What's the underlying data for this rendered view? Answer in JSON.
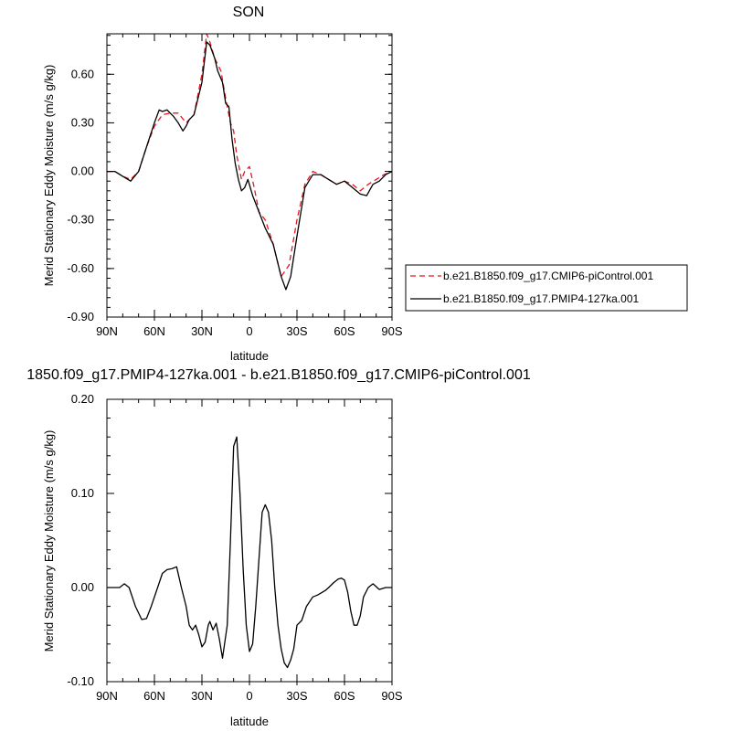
{
  "chart_data": [
    {
      "type": "line",
      "title": "SON",
      "xlabel": "latitude",
      "ylabel": "Merid Stationary Eddy Moisture (m/s g/kg)",
      "xlim": [
        90,
        -90
      ],
      "ylim": [
        -0.9,
        0.85
      ],
      "x_ticks": [
        {
          "value": 90,
          "label": "90N"
        },
        {
          "value": 60,
          "label": "60N"
        },
        {
          "value": 30,
          "label": "30N"
        },
        {
          "value": 0,
          "label": "0"
        },
        {
          "value": -30,
          "label": "30S"
        },
        {
          "value": -60,
          "label": "60S"
        },
        {
          "value": -90,
          "label": "90S"
        }
      ],
      "y_ticks": [
        {
          "value": 0.6,
          "label": "0.60"
        },
        {
          "value": 0.3,
          "label": "0.30"
        },
        {
          "value": 0.0,
          "label": "0.00"
        },
        {
          "value": -0.3,
          "label": "-0.30"
        },
        {
          "value": -0.6,
          "label": "-0.60"
        },
        {
          "value": -0.9,
          "label": "-0.90"
        }
      ],
      "legend": "right",
      "series": [
        {
          "name": "b.e21.B1850.f09_g17.CMIP6-piControl.001",
          "color": "#e8141e",
          "dash": "dashed",
          "x": [
            90,
            85,
            80,
            75,
            70,
            65,
            60,
            55,
            50,
            45,
            40,
            35,
            30,
            27,
            25,
            22,
            18,
            15,
            12,
            10,
            8,
            5,
            3,
            0,
            -3,
            -6,
            -10,
            -15,
            -20,
            -25,
            -30,
            -35,
            -40,
            -45,
            -50,
            -55,
            -60,
            -65,
            -70,
            -75,
            -80,
            -85,
            -90
          ],
          "y": [
            0.0,
            0.0,
            -0.03,
            -0.05,
            0.0,
            0.15,
            0.28,
            0.35,
            0.36,
            0.36,
            0.3,
            0.35,
            0.6,
            0.85,
            0.8,
            0.7,
            0.62,
            0.45,
            0.3,
            0.25,
            0.1,
            -0.05,
            0.0,
            0.03,
            -0.1,
            -0.25,
            -0.3,
            -0.45,
            -0.65,
            -0.58,
            -0.3,
            -0.08,
            0.0,
            -0.02,
            -0.05,
            -0.08,
            -0.06,
            -0.08,
            -0.12,
            -0.08,
            -0.05,
            -0.02,
            0.0
          ]
        },
        {
          "name": "b.e21.B1850.f09_g17.PMIP4-127ka.001",
          "color": "#000000",
          "dash": "solid",
          "x": [
            90,
            85,
            80,
            75,
            70,
            65,
            60,
            57,
            55,
            52,
            50,
            48,
            45,
            42,
            40,
            38,
            35,
            30,
            27,
            25,
            22,
            20,
            17,
            15,
            13,
            11,
            9,
            7,
            5,
            3,
            1,
            -2,
            -6,
            -10,
            -15,
            -20,
            -23,
            -26,
            -30,
            -35,
            -40,
            -45,
            -50,
            -55,
            -60,
            -65,
            -70,
            -74,
            -78,
            -82,
            -86,
            -90
          ],
          "y": [
            0.0,
            0.0,
            -0.03,
            -0.06,
            0.0,
            0.15,
            0.3,
            0.38,
            0.37,
            0.38,
            0.36,
            0.34,
            0.3,
            0.25,
            0.28,
            0.32,
            0.35,
            0.55,
            0.8,
            0.78,
            0.7,
            0.62,
            0.55,
            0.42,
            0.4,
            0.2,
            0.05,
            -0.05,
            -0.12,
            -0.1,
            -0.05,
            -0.15,
            -0.25,
            -0.35,
            -0.45,
            -0.65,
            -0.73,
            -0.65,
            -0.4,
            -0.1,
            -0.02,
            -0.02,
            -0.05,
            -0.08,
            -0.06,
            -0.1,
            -0.14,
            -0.15,
            -0.08,
            -0.06,
            -0.02,
            0.0
          ]
        }
      ]
    },
    {
      "type": "line",
      "title": "1850.f09_g17.PMIP4-127ka.001 - b.e21.B1850.f09_g17.CMIP6-piControl.001",
      "xlabel": "latitude",
      "ylabel": "Merid Stationary Eddy Moisture (m/s g/kg)",
      "xlim": [
        90,
        -90
      ],
      "ylim": [
        -0.1,
        0.2
      ],
      "x_ticks": [
        {
          "value": 90,
          "label": "90N"
        },
        {
          "value": 60,
          "label": "60N"
        },
        {
          "value": 30,
          "label": "30N"
        },
        {
          "value": 0,
          "label": "0"
        },
        {
          "value": -30,
          "label": "30S"
        },
        {
          "value": -60,
          "label": "60S"
        },
        {
          "value": -90,
          "label": "90S"
        }
      ],
      "y_ticks": [
        {
          "value": 0.2,
          "label": "0.20"
        },
        {
          "value": 0.1,
          "label": "0.10"
        },
        {
          "value": 0.0,
          "label": "0.00"
        },
        {
          "value": -0.1,
          "label": "-0.10"
        }
      ],
      "series": [
        {
          "color": "#000000",
          "dash": "solid",
          "x": [
            90,
            85,
            82,
            79,
            76,
            72,
            68,
            65,
            62,
            58,
            55,
            52,
            49,
            46,
            43,
            40,
            38,
            36,
            34,
            32,
            30,
            28,
            26,
            25,
            23,
            21,
            19,
            17,
            14,
            12,
            10,
            8,
            6,
            4,
            2,
            0,
            -2,
            -4,
            -6,
            -8,
            -10,
            -12,
            -14,
            -16,
            -18,
            -20,
            -22,
            -24,
            -26,
            -28,
            -30,
            -33,
            -36,
            -40,
            -43,
            -45,
            -48,
            -50,
            -53,
            -56,
            -58,
            -60,
            -62,
            -64,
            -66,
            -68,
            -70,
            -72,
            -75,
            -78,
            -82,
            -86,
            -90
          ],
          "y": [
            0.0,
            0.0,
            0.0,
            0.004,
            0.0,
            -0.02,
            -0.034,
            -0.033,
            -0.02,
            0.0,
            0.015,
            0.019,
            0.02,
            0.022,
            0.0,
            -0.02,
            -0.04,
            -0.045,
            -0.04,
            -0.05,
            -0.063,
            -0.058,
            -0.04,
            -0.036,
            -0.045,
            -0.038,
            -0.055,
            -0.075,
            -0.04,
            0.05,
            0.15,
            0.16,
            0.1,
            0.02,
            -0.04,
            -0.068,
            -0.06,
            -0.02,
            0.03,
            0.08,
            0.088,
            0.08,
            0.05,
            0.0,
            -0.04,
            -0.065,
            -0.08,
            -0.085,
            -0.077,
            -0.065,
            -0.04,
            -0.035,
            -0.02,
            -0.01,
            -0.008,
            -0.006,
            -0.003,
            0.0,
            0.005,
            0.009,
            0.01,
            0.008,
            -0.005,
            -0.025,
            -0.04,
            -0.04,
            -0.03,
            -0.01,
            0.0,
            0.004,
            -0.002,
            0.0,
            0.0
          ]
        }
      ]
    }
  ],
  "colors": {
    "control_series": "#e8141e",
    "pmip_series": "#000000"
  }
}
